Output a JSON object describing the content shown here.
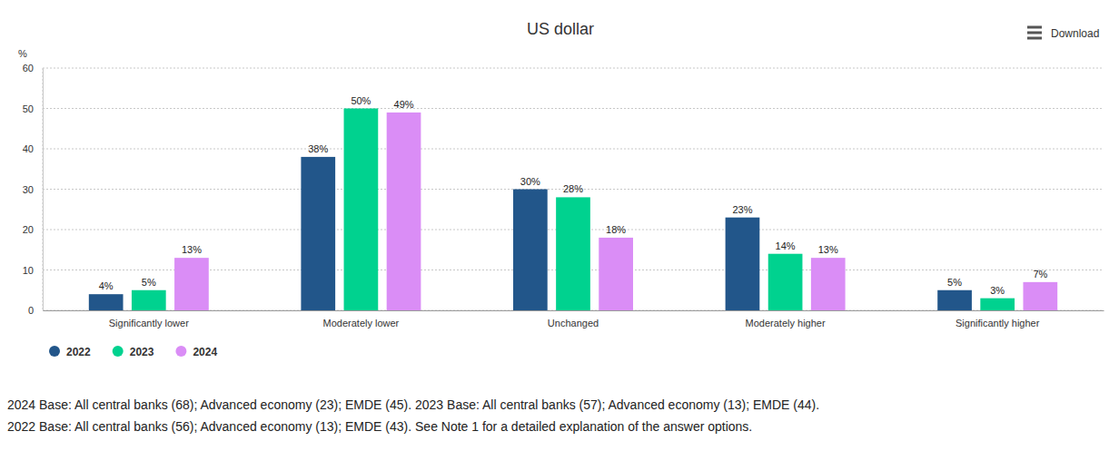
{
  "chart_data": {
    "type": "bar",
    "title": "US dollar",
    "y_label": "%",
    "categories": [
      "Significantly lower",
      "Moderately lower",
      "Unchanged",
      "Moderately higher",
      "Significantly higher"
    ],
    "series": [
      {
        "name": "2022",
        "color": "#22568a",
        "values": [
          4,
          38,
          30,
          23,
          5
        ],
        "value_labels": [
          "4%",
          "38%",
          "30%",
          "23%",
          "5%"
        ]
      },
      {
        "name": "2023",
        "color": "#00d28f",
        "values": [
          5,
          50,
          28,
          14,
          3
        ],
        "value_labels": [
          "5%",
          "50%",
          "28%",
          "14%",
          "3%"
        ]
      },
      {
        "name": "2024",
        "color": "#da8df6",
        "values": [
          13,
          49,
          18,
          13,
          7
        ],
        "value_labels": [
          "13%",
          "49%",
          "18%",
          "13%",
          "7%"
        ]
      }
    ],
    "ylim": [
      0,
      60
    ],
    "yticks": [
      0,
      10,
      20,
      30,
      40,
      50,
      60
    ],
    "grid": true,
    "legend": "bottom",
    "data_labels": true,
    "notes": [
      "2024 Base: All central banks (68); Advanced economy (23); EMDE (45). 2023 Base: All central banks (57); Advanced economy (13); EMDE (44).",
      "2022 Base: All central banks (56); Advanced economy (13); EMDE (43). See Note 1 for a detailed explanation of the answer options."
    ]
  },
  "toolbar": {
    "button": "Download"
  }
}
